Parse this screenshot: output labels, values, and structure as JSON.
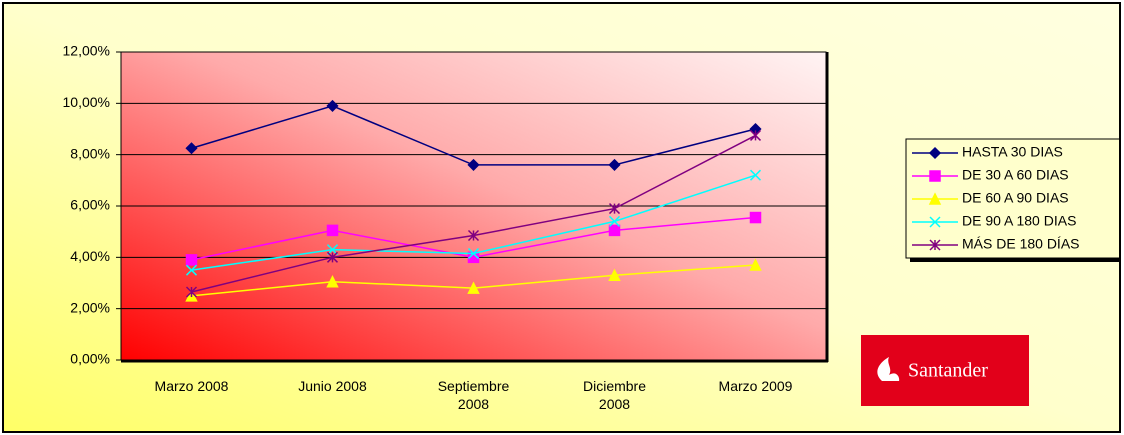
{
  "chart_data": {
    "type": "line",
    "categories": [
      "Marzo 2008",
      "Junio 2008",
      "Septiembre 2008",
      "Diciembre 2008",
      "Marzo 2009"
    ],
    "series": [
      {
        "name": "HASTA 30 DIAS",
        "color": "#000080",
        "marker": "diamond",
        "values": [
          8.25,
          9.9,
          7.6,
          7.6,
          9.0
        ]
      },
      {
        "name": "DE 30 A 60 DIAS",
        "color": "#ff00ff",
        "marker": "square",
        "values": [
          3.9,
          5.05,
          4.0,
          5.05,
          5.55
        ]
      },
      {
        "name": "DE 60 A 90 DIAS",
        "color": "#ffff00",
        "marker": "triangle",
        "values": [
          2.5,
          3.05,
          2.8,
          3.3,
          3.7
        ]
      },
      {
        "name": "DE 90 A 180 DIAS",
        "color": "#00ffff",
        "marker": "x",
        "values": [
          3.5,
          4.3,
          4.15,
          5.4,
          7.2
        ]
      },
      {
        "name": "MÁS DE 180 DÍAS",
        "color": "#800080",
        "marker": "asterisk",
        "values": [
          2.65,
          4.0,
          4.85,
          5.9,
          8.75
        ]
      }
    ],
    "ylim": [
      0,
      12
    ],
    "yticks": [
      {
        "value": 0,
        "label": "0,00%"
      },
      {
        "value": 2,
        "label": "2,00%"
      },
      {
        "value": 4,
        "label": "4,00%"
      },
      {
        "value": 6,
        "label": "6,00%"
      },
      {
        "value": 8,
        "label": "8,00%"
      },
      {
        "value": 10,
        "label": "10,00%"
      },
      {
        "value": 12,
        "label": "12,00%"
      }
    ],
    "grid": true,
    "legend": "right"
  },
  "logo": "Santander"
}
